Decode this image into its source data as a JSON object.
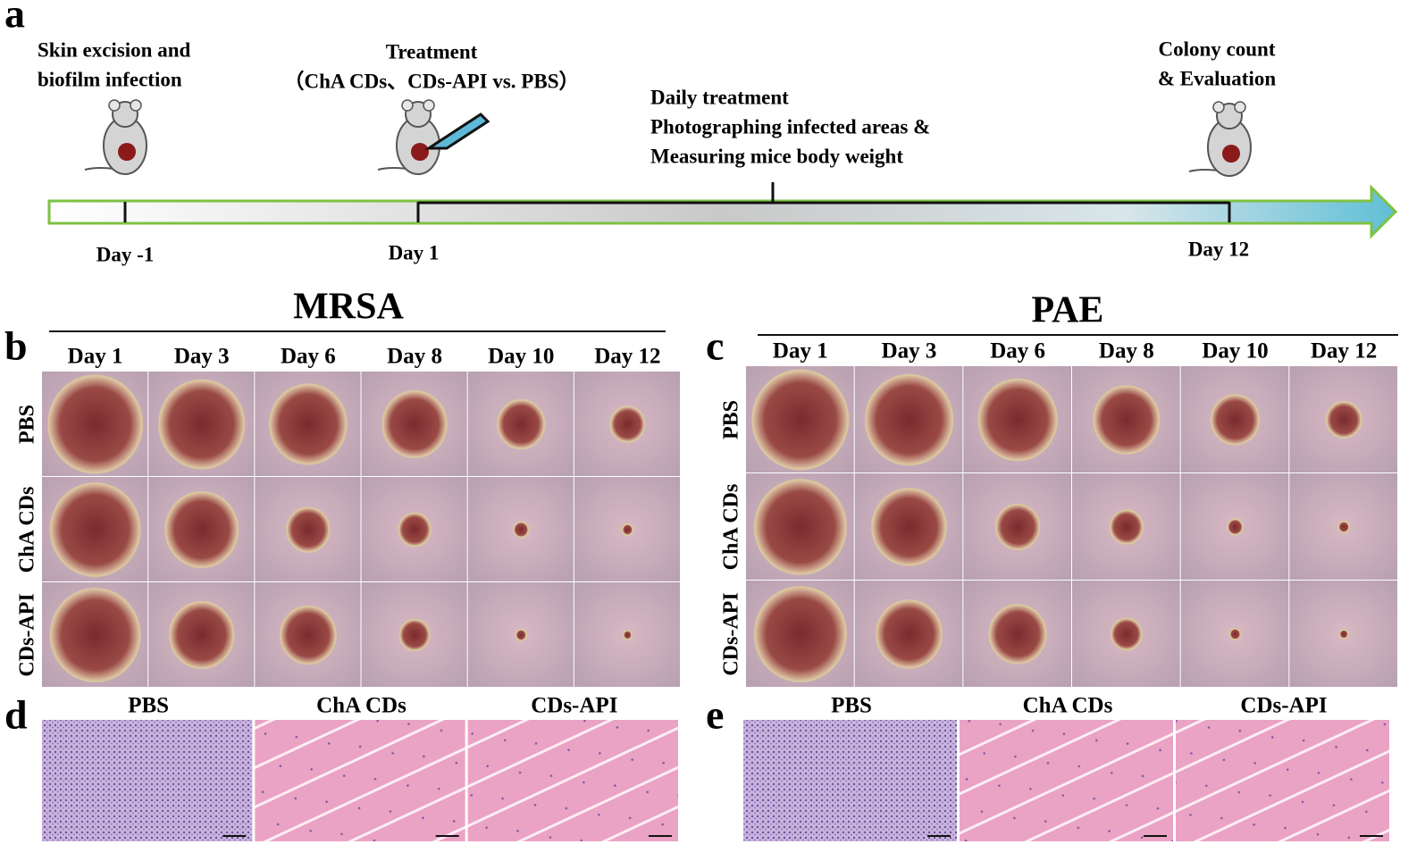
{
  "panel_a": {
    "label": "a",
    "events": [
      {
        "text": [
          "Skin excision and",
          "biofilm infection"
        ],
        "day": "Day -1"
      },
      {
        "text": [
          "Treatment",
          "（ChA CDs、CDs-API vs. PBS）"
        ],
        "day": "Day 1"
      },
      {
        "text": [
          "Daily treatment",
          "Photographing infected areas &",
          "Measuring mice body weight"
        ]
      },
      {
        "text": [
          "Colony count",
          "& Evaluation"
        ],
        "day": "Day 12"
      }
    ]
  },
  "panel_b": {
    "label": "b",
    "title": "MRSA",
    "days": [
      "Day 1",
      "Day 3",
      "Day 6",
      "Day 8",
      "Day 10",
      "Day 12"
    ],
    "rows": [
      "PBS",
      "ChA CDs",
      "CDs-API"
    ]
  },
  "panel_c": {
    "label": "c",
    "title": "PAE",
    "days": [
      "Day 1",
      "Day 3",
      "Day 6",
      "Day 8",
      "Day 10",
      "Day 12"
    ],
    "rows": [
      "PBS",
      "ChA CDs",
      "CDs-API"
    ]
  },
  "panel_d": {
    "label": "d",
    "columns": [
      "PBS",
      "ChA CDs",
      "CDs-API"
    ]
  },
  "panel_e": {
    "label": "e",
    "columns": [
      "PBS",
      "ChA CDs",
      "CDs-API"
    ]
  }
}
